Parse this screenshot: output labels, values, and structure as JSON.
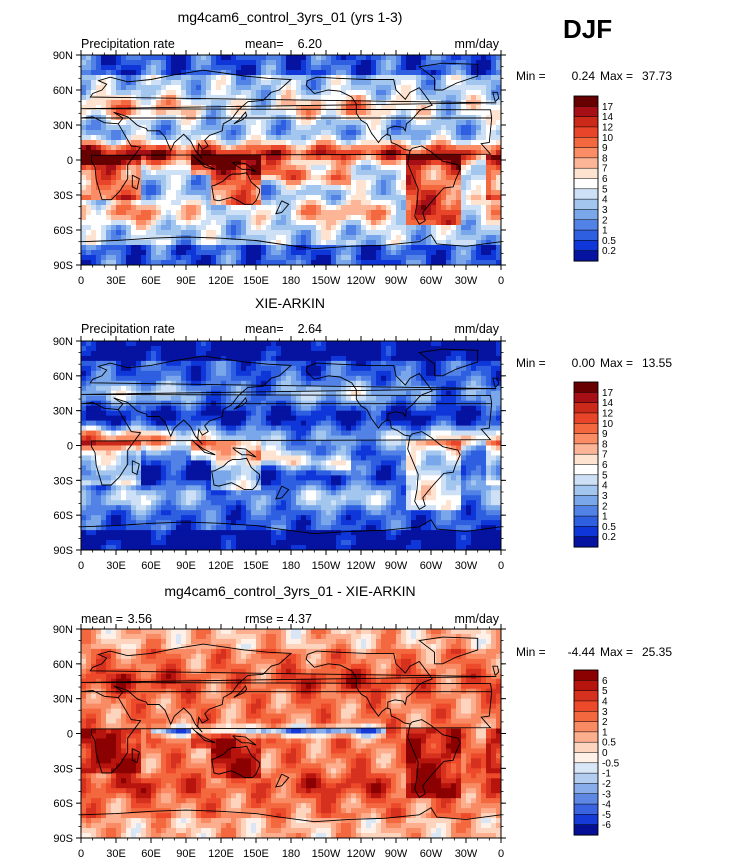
{
  "season": "DJF",
  "chart_data": [
    {
      "type": "heatmap",
      "title": "mg4cam6_control_3yrs_01 (yrs 1-3)",
      "left_label": "Precipitation rate",
      "stat1_label": "mean=",
      "stat1_value": "6.20",
      "stat2_label": "",
      "stat2_value": "",
      "units": "mm/day",
      "min_label": "Min =",
      "min_value": "0.24",
      "max_label": "Max =",
      "max_value": "37.73",
      "x_ticks": [
        "0",
        "30E",
        "60E",
        "90E",
        "120E",
        "150E",
        "180",
        "150W",
        "120W",
        "90W",
        "60W",
        "30W",
        "0"
      ],
      "y_ticks": [
        "90N",
        "60N",
        "30N",
        "0",
        "30S",
        "60S",
        "90S"
      ],
      "xlim": [
        0,
        360
      ],
      "ylim": [
        -90,
        90
      ],
      "colorbar_labels": [
        "17",
        "14",
        "12",
        "10",
        "9",
        "8",
        "7",
        "6",
        "5",
        "4",
        "3",
        "2",
        "1",
        "0.5",
        "0.2"
      ],
      "colorbar_colors": [
        "#670000",
        "#a50f15",
        "#cb2a1b",
        "#e8452a",
        "#f4683f",
        "#fa8c66",
        "#fdb597",
        "#fde3d0",
        "#ffffff",
        "#cde0f5",
        "#a3c6ef",
        "#7aa7ea",
        "#5282e6",
        "#2e5fe0",
        "#0f36d8",
        "#0513a0"
      ],
      "field_colors": [
        "#0513a0",
        "#0f36d8",
        "#2e5fe0",
        "#5282e6",
        "#7aa7ea",
        "#a3c6ef",
        "#cde0f5",
        "#ffffff",
        "#fde3d0",
        "#fdb597",
        "#fa8c66",
        "#f4683f",
        "#e8452a",
        "#cb2a1b",
        "#a50f15",
        "#670000"
      ],
      "field_mode": "model"
    },
    {
      "type": "heatmap",
      "title": "XIE-ARKIN",
      "left_label": "Precipitation rate",
      "stat1_label": "mean=",
      "stat1_value": "2.64",
      "stat2_label": "",
      "stat2_value": "",
      "units": "mm/day",
      "min_label": "Min =",
      "min_value": "0.00",
      "max_label": "Max =",
      "max_value": "13.55",
      "x_ticks": [
        "0",
        "30E",
        "60E",
        "90E",
        "120E",
        "150E",
        "180",
        "150W",
        "120W",
        "90W",
        "60W",
        "30W",
        "0"
      ],
      "y_ticks": [
        "90N",
        "60N",
        "30N",
        "0",
        "30S",
        "60S",
        "90S"
      ],
      "xlim": [
        0,
        360
      ],
      "ylim": [
        -90,
        90
      ],
      "colorbar_labels": [
        "17",
        "14",
        "12",
        "10",
        "9",
        "8",
        "7",
        "6",
        "5",
        "4",
        "3",
        "2",
        "1",
        "0.5",
        "0.2"
      ],
      "colorbar_colors": [
        "#670000",
        "#a50f15",
        "#cb2a1b",
        "#e8452a",
        "#f4683f",
        "#fa8c66",
        "#fdb597",
        "#fde3d0",
        "#ffffff",
        "#cde0f5",
        "#a3c6ef",
        "#7aa7ea",
        "#5282e6",
        "#2e5fe0",
        "#0f36d8",
        "#0513a0"
      ],
      "field_colors": [
        "#0513a0",
        "#0f36d8",
        "#2e5fe0",
        "#5282e6",
        "#7aa7ea",
        "#a3c6ef",
        "#cde0f5",
        "#ffffff",
        "#fde3d0",
        "#fdb597",
        "#fa8c66",
        "#f4683f",
        "#e8452a",
        "#cb2a1b",
        "#a50f15",
        "#670000"
      ],
      "field_mode": "obs"
    },
    {
      "type": "heatmap",
      "title": "mg4cam6_control_3yrs_01 - XIE-ARKIN",
      "left_label": "",
      "stat1_label": "mean =",
      "stat1_value": "3.56",
      "stat2_label": "rmse =",
      "stat2_value": "4.37",
      "units": "mm/day",
      "min_label": "Min =",
      "min_value": "-4.44",
      "max_label": "Max =",
      "max_value": "25.35",
      "x_ticks": [
        "0",
        "30E",
        "60E",
        "90E",
        "120E",
        "150E",
        "180",
        "150W",
        "120W",
        "90W",
        "60W",
        "30W",
        "0"
      ],
      "y_ticks": [
        "90N",
        "60N",
        "30N",
        "0",
        "30S",
        "60S",
        "90S"
      ],
      "xlim": [
        0,
        360
      ],
      "ylim": [
        -90,
        90
      ],
      "colorbar_labels": [
        "6",
        "5",
        "4",
        "3",
        "2",
        "1",
        "0.5",
        "0",
        "-0.5",
        "-1",
        "-2",
        "-3",
        "-4",
        "-5",
        "-6"
      ],
      "colorbar_colors": [
        "#8b0000",
        "#b8140e",
        "#d6311f",
        "#ec4a2b",
        "#f4683f",
        "#f98b64",
        "#fcae8e",
        "#fdd4bd",
        "#fff1e8",
        "#d8e6f6",
        "#b2cdf0",
        "#89acea",
        "#5f88e5",
        "#3a63e0",
        "#163ad7",
        "#050f96"
      ],
      "field_colors": [
        "#050f96",
        "#163ad7",
        "#3a63e0",
        "#5f88e5",
        "#89acea",
        "#b2cdf0",
        "#d8e6f6",
        "#fff1e8",
        "#fdd4bd",
        "#fcae8e",
        "#f98b64",
        "#f4683f",
        "#ec4a2b",
        "#d6311f",
        "#b8140e",
        "#8b0000"
      ],
      "field_mode": "diff"
    }
  ]
}
